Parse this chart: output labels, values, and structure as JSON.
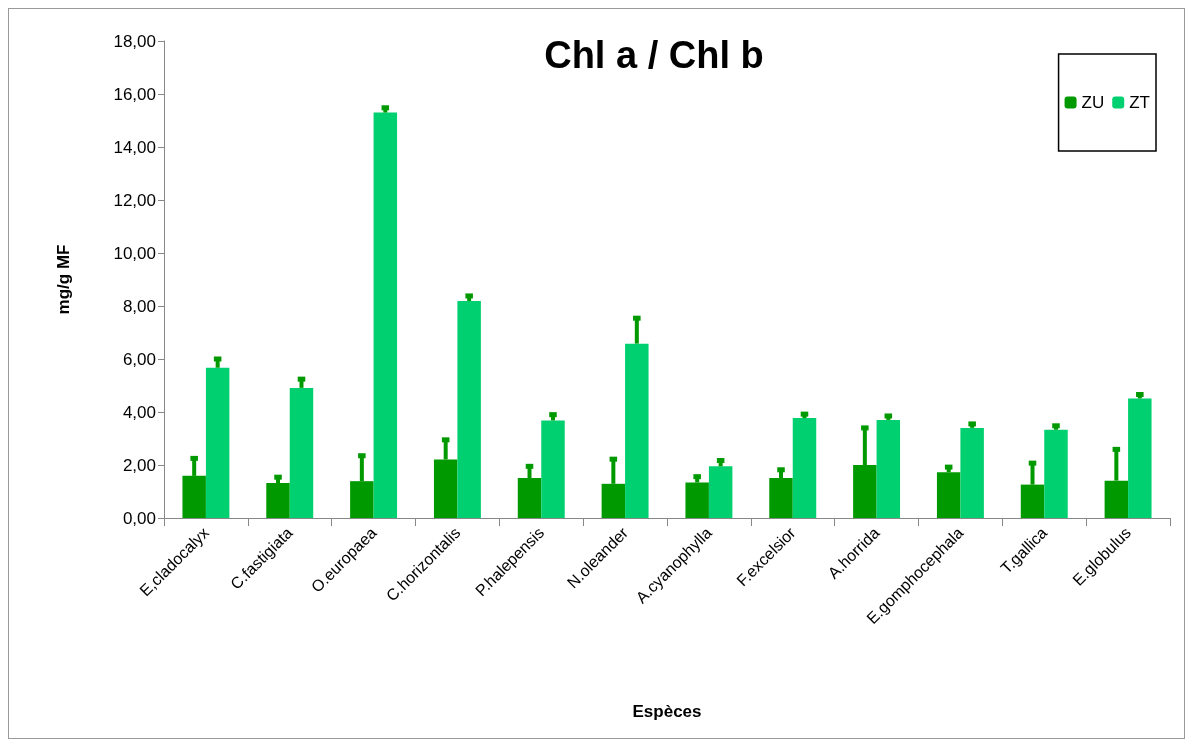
{
  "chart_data": {
    "type": "bar",
    "title": "Chl a / Chl b",
    "xlabel": "Espèces",
    "ylabel": "mg/g MF",
    "categories": [
      "E,cladocalyx",
      "C.fastigiata",
      "O.europaea",
      "C.horizontalis",
      "P.halepensis",
      "N.oleander",
      "A.cyanophylla",
      "F.excelsior",
      "A.horrida",
      "E.gomphocephala",
      "T.gallica",
      "E.globulus"
    ],
    "series": [
      {
        "name": "ZU",
        "color": "#009a00",
        "values": [
          1.59,
          1.32,
          1.39,
          2.21,
          1.51,
          1.29,
          1.34,
          1.51,
          2.0,
          1.73,
          1.26,
          1.41
        ],
        "errors": [
          [
            1.59,
            2.25
          ],
          [
            1.32,
            1.54
          ],
          [
            1.39,
            2.35
          ],
          [
            2.21,
            2.95
          ],
          [
            1.51,
            1.95
          ],
          [
            1.29,
            2.22
          ],
          [
            1.34,
            1.56
          ],
          [
            1.51,
            1.82
          ],
          [
            2.0,
            3.4
          ],
          [
            1.73,
            1.92
          ],
          [
            1.26,
            2.07
          ],
          [
            1.41,
            2.59
          ]
        ]
      },
      {
        "name": "ZT",
        "color": "#00d070",
        "values": [
          5.67,
          4.91,
          15.3,
          8.19,
          3.68,
          6.58,
          1.95,
          3.77,
          3.7,
          3.4,
          3.33,
          4.51
        ],
        "errors": [
          [
            5.67,
            6.0
          ],
          [
            4.91,
            5.24
          ],
          [
            15.3,
            15.48
          ],
          [
            8.19,
            8.38
          ],
          [
            3.68,
            3.9
          ],
          [
            6.58,
            7.54
          ],
          [
            1.95,
            2.17
          ],
          [
            3.77,
            3.92
          ],
          [
            3.7,
            3.85
          ],
          [
            3.4,
            3.55
          ],
          [
            3.33,
            3.48
          ],
          [
            4.51,
            4.66
          ]
        ]
      }
    ],
    "ylim": [
      0,
      18
    ],
    "yticks": [
      {
        "value": 0,
        "label": "0,00"
      },
      {
        "value": 2,
        "label": "2,00"
      },
      {
        "value": 4,
        "label": "4,00"
      },
      {
        "value": 6,
        "label": "6,00"
      },
      {
        "value": 8,
        "label": "8,00"
      },
      {
        "value": 10,
        "label": "10,00"
      },
      {
        "value": 12,
        "label": "12,00"
      },
      {
        "value": 14,
        "label": "14,00"
      },
      {
        "value": 16,
        "label": "16,00"
      },
      {
        "value": 18,
        "label": "18,00"
      }
    ],
    "grid": false,
    "legend": "top right"
  }
}
